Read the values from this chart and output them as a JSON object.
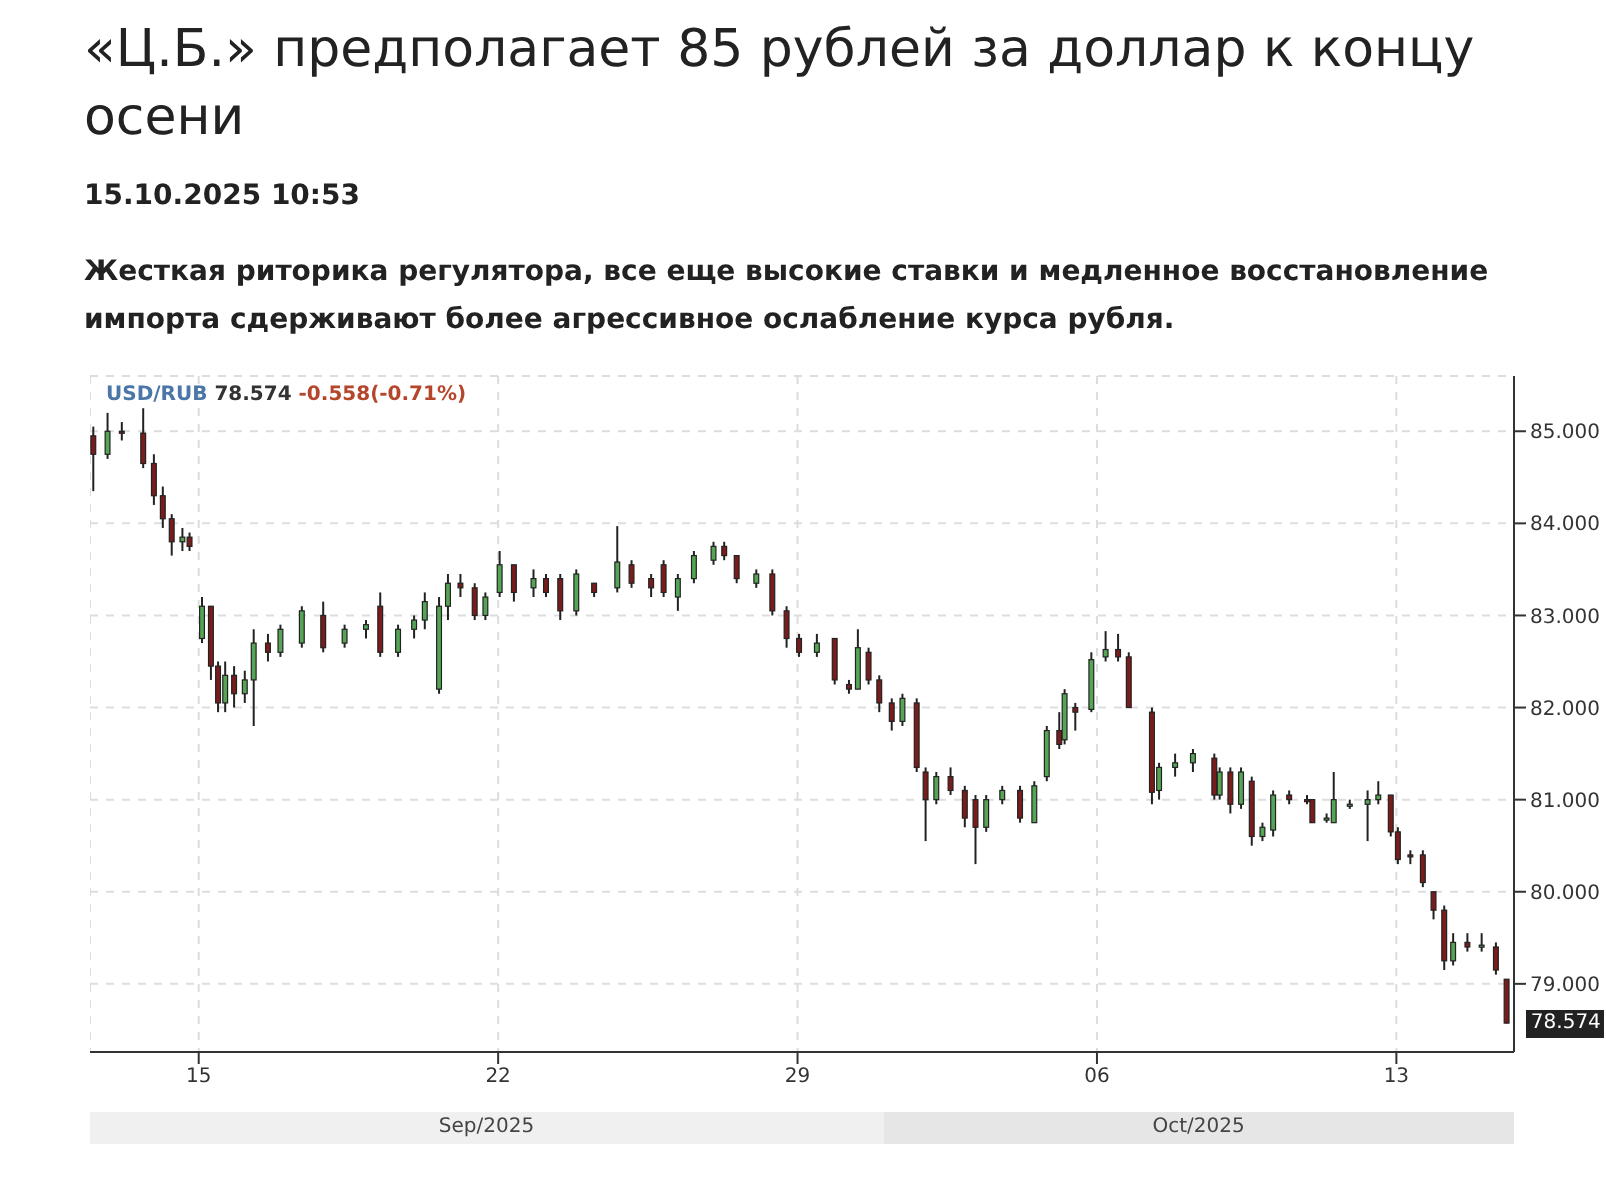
{
  "chart_data": {
    "type": "candlestick",
    "title": "«Ц.Б.» предполагает 85 рублей за доллар к концу осени",
    "subtitle": "15.10.2025 10:53",
    "annotations": [
      "Жесткая риторика регулятора, все еще высокие ставки и медленное восстановление импорта сдерживают более агрессивное ослабление курса рубля.",
      "78.574",
      "-0.558(-0.71%)",
      "Sep/2025",
      "Oct/2025",
      {
        "text": "78.574",
        "x": "2025-10-15T14:00",
        "y": 78.574
      }
    ],
    "series": [
      {
        "name": "USD/RUB",
        "color": "#222222",
        "colors": [
          "#7a1c1c",
          "#55a555",
          "#7a1c1c",
          "#7a1c1c",
          "#7a1c1c",
          "#7a1c1c",
          "#7a1c1c",
          "#55a555",
          "#7a1c1c",
          "#55a555",
          "#7a1c1c",
          "#7a1c1c",
          "#55a555",
          "#7a1c1c",
          "#55a555",
          "#55a555",
          "#7a1c1c",
          "#55a555",
          "#55a555",
          "#7a1c1c",
          "#55a555",
          "#55a555",
          "#7a1c1c",
          "#55a555",
          "#55a555",
          "#55a555",
          "#55a555",
          "#55a555",
          "#7a1c1c",
          "#7a1c1c",
          "#55a555",
          "#55a555",
          "#7a1c1c",
          "#55a555",
          "#7a1c1c",
          "#7a1c1c",
          "#55a555",
          "#7a1c1c",
          "#55a555",
          "#7a1c1c",
          "#7a1c1c",
          "#7a1c1c",
          "#55a555",
          "#55a555",
          "#55a555",
          "#7a1c1c",
          "#7a1c1c",
          "#55a555",
          "#7a1c1c",
          "#7a1c1c",
          "#7a1c1c",
          "#55a555",
          "#7a1c1c",
          "#7a1c1c",
          "#55a555",
          "#7a1c1c",
          "#7a1c1c",
          "#7a1c1c",
          "#55a555",
          "#7a1c1c",
          "#7a1c1c",
          "#55a555",
          "#7a1c1c",
          "#7a1c1c",
          "#7a1c1c",
          "#55a555",
          "#55a555",
          "#7a1c1c",
          "#55a555",
          "#55a555",
          "#7a1c1c",
          "#55a555",
          "#7a1c1c",
          "#55a555",
          "#55a555",
          "#7a1c1c",
          "#7a1c1c",
          "#7a1c1c",
          "#55a555",
          "#55a555",
          "#55a555",
          "#7a1c1c",
          "#55a555",
          "#7a1c1c",
          "#55a555",
          "#7a1c1c",
          "#55a555",
          "#55a555",
          "#7a1c1c",
          "#7a1c1c",
          "#7a1c1c",
          "#55a555",
          "#55a555",
          "#55a555",
          "#55a555",
          "#55a555",
          "#7a1c1c",
          "#7a1c1c",
          "#7a1c1c",
          "#7a1c1c",
          "#7a1c1c",
          "#7a1c1c",
          "#55a555",
          "#7a1c1c",
          "#55a555",
          "#7a1c1c",
          "#7a1c1c"
        ],
        "x": [
          "2025-09-12T13:00",
          "2025-09-12T21:00",
          "2025-09-13T05:00",
          "2025-09-13T17:00",
          "2025-09-13T23:00",
          "2025-09-14T04:00",
          "2025-09-14T09:00",
          "2025-09-14T15:00",
          "2025-09-14T19:00",
          "2025-09-15T02:00",
          "2025-09-15T07:00",
          "2025-09-15T11:00",
          "2025-09-15T15:00",
          "2025-09-15T20:00",
          "2025-09-16T02:00",
          "2025-09-16T07:00",
          "2025-09-16T15:00",
          "2025-09-16T22:00",
          "2025-09-17T10:00",
          "2025-09-17T22:00",
          "2025-09-18T10:00",
          "2025-09-18T22:00",
          "2025-09-19T06:00",
          "2025-09-19T16:00",
          "2025-09-20T01:00",
          "2025-09-20T07:00",
          "2025-09-20T15:00",
          "2025-09-20T20:00",
          "2025-09-21T03:00",
          "2025-09-21T11:00",
          "2025-09-21T17:00",
          "2025-09-22T01:00",
          "2025-09-22T09:00",
          "2025-09-22T20:00",
          "2025-09-23T03:00",
          "2025-09-23T11:00",
          "2025-09-23T20:00",
          "2025-09-24T06:00",
          "2025-09-24T19:00",
          "2025-09-25T03:00",
          "2025-09-25T14:00",
          "2025-09-25T21:00",
          "2025-09-26T05:00",
          "2025-09-26T14:00",
          "2025-09-27T01:00",
          "2025-09-27T07:00",
          "2025-09-27T14:00",
          "2025-09-28T01:00",
          "2025-09-28T10:00",
          "2025-09-28T18:00",
          "2025-09-29T01:00",
          "2025-09-29T11:00",
          "2025-09-29T21:00",
          "2025-09-30T05:00",
          "2025-09-30T10:00",
          "2025-09-30T16:00",
          "2025-09-30T22:00",
          "2025-10-01T05:00",
          "2025-10-01T11:00",
          "2025-10-01T19:00",
          "2025-10-02T00:00",
          "2025-10-02T06:00",
          "2025-10-02T14:00",
          "2025-10-02T22:00",
          "2025-10-03T04:00",
          "2025-10-03T10:00",
          "2025-10-03T19:00",
          "2025-10-04T05:00",
          "2025-10-04T13:00",
          "2025-10-04T20:00",
          "2025-10-05T03:00",
          "2025-10-05T06:00",
          "2025-10-05T12:00",
          "2025-10-05T21:00",
          "2025-10-06T05:00",
          "2025-10-06T12:00",
          "2025-10-06T18:00",
          "2025-10-07T07:00",
          "2025-10-07T11:00",
          "2025-10-07T20:00",
          "2025-10-08T06:00",
          "2025-10-08T18:00",
          "2025-10-08T21:00",
          "2025-10-09T03:00",
          "2025-10-09T09:00",
          "2025-10-09T15:00",
          "2025-10-09T21:00",
          "2025-10-10T03:00",
          "2025-10-10T12:00",
          "2025-10-10T22:00",
          "2025-10-11T01:00",
          "2025-10-11T09:00",
          "2025-10-11T13:00",
          "2025-10-11T22:00",
          "2025-10-12T08:00",
          "2025-10-12T14:00",
          "2025-10-12T21:00",
          "2025-10-13T01:00",
          "2025-10-13T08:00",
          "2025-10-13T15:00",
          "2025-10-13T21:00",
          "2025-10-14T03:00",
          "2025-10-14T08:00",
          "2025-10-14T16:00",
          "2025-10-15T00:00",
          "2025-10-15T08:00",
          "2025-10-15T14:00"
        ],
        "ohlc": [
          [
            84.95,
            85.05,
            84.35,
            84.75
          ],
          [
            84.75,
            85.2,
            84.7,
            85.0
          ],
          [
            85.0,
            85.1,
            84.9,
            84.98
          ],
          [
            84.98,
            85.25,
            84.6,
            84.65
          ],
          [
            84.65,
            84.75,
            84.2,
            84.3
          ],
          [
            84.3,
            84.4,
            83.95,
            84.05
          ],
          [
            84.05,
            84.1,
            83.65,
            83.8
          ],
          [
            83.8,
            83.95,
            83.7,
            83.85
          ],
          [
            83.85,
            83.9,
            83.7,
            83.75
          ],
          [
            82.75,
            83.2,
            82.7,
            83.1
          ],
          [
            83.1,
            83.1,
            82.3,
            82.45
          ],
          [
            82.45,
            82.5,
            81.95,
            82.05
          ],
          [
            82.05,
            82.5,
            81.95,
            82.35
          ],
          [
            82.35,
            82.45,
            82.0,
            82.15
          ],
          [
            82.15,
            82.4,
            82.05,
            82.3
          ],
          [
            82.3,
            82.85,
            81.8,
            82.7
          ],
          [
            82.7,
            82.8,
            82.5,
            82.6
          ],
          [
            82.6,
            82.9,
            82.55,
            82.85
          ],
          [
            82.7,
            83.1,
            82.65,
            83.05
          ],
          [
            83.0,
            83.15,
            82.6,
            82.65
          ],
          [
            82.7,
            82.9,
            82.65,
            82.85
          ],
          [
            82.85,
            82.95,
            82.75,
            82.9
          ],
          [
            83.1,
            83.25,
            82.55,
            82.6
          ],
          [
            82.6,
            82.9,
            82.55,
            82.85
          ],
          [
            82.85,
            83.0,
            82.75,
            82.95
          ],
          [
            82.95,
            83.25,
            82.85,
            83.15
          ],
          [
            82.2,
            83.2,
            82.15,
            83.1
          ],
          [
            83.1,
            83.45,
            82.95,
            83.35
          ],
          [
            83.35,
            83.45,
            83.2,
            83.3
          ],
          [
            83.3,
            83.35,
            82.95,
            83.0
          ],
          [
            83.0,
            83.25,
            82.95,
            83.2
          ],
          [
            83.25,
            83.7,
            83.2,
            83.55
          ],
          [
            83.55,
            83.55,
            83.15,
            83.25
          ],
          [
            83.3,
            83.5,
            83.2,
            83.4
          ],
          [
            83.4,
            83.45,
            83.2,
            83.25
          ],
          [
            83.4,
            83.45,
            82.95,
            83.05
          ],
          [
            83.05,
            83.5,
            83.0,
            83.45
          ],
          [
            83.35,
            83.35,
            83.2,
            83.25
          ],
          [
            83.3,
            83.97,
            83.25,
            83.58
          ],
          [
            83.55,
            83.6,
            83.3,
            83.35
          ],
          [
            83.4,
            83.45,
            83.2,
            83.3
          ],
          [
            83.55,
            83.6,
            83.2,
            83.25
          ],
          [
            83.2,
            83.45,
            83.05,
            83.4
          ],
          [
            83.4,
            83.7,
            83.35,
            83.65
          ],
          [
            83.6,
            83.8,
            83.55,
            83.75
          ],
          [
            83.75,
            83.8,
            83.6,
            83.65
          ],
          [
            83.65,
            83.65,
            83.35,
            83.4
          ],
          [
            83.35,
            83.5,
            83.3,
            83.45
          ],
          [
            83.45,
            83.5,
            83.0,
            83.05
          ],
          [
            83.05,
            83.1,
            82.65,
            82.75
          ],
          [
            82.75,
            82.8,
            82.55,
            82.6
          ],
          [
            82.6,
            82.8,
            82.55,
            82.7
          ],
          [
            82.75,
            82.75,
            82.25,
            82.3
          ],
          [
            82.25,
            82.3,
            82.15,
            82.2
          ],
          [
            82.2,
            82.85,
            82.2,
            82.65
          ],
          [
            82.6,
            82.65,
            82.25,
            82.3
          ],
          [
            82.3,
            82.35,
            81.95,
            82.05
          ],
          [
            82.05,
            82.1,
            81.75,
            81.85
          ],
          [
            81.85,
            82.15,
            81.8,
            82.1
          ],
          [
            82.05,
            82.1,
            81.3,
            81.35
          ],
          [
            81.3,
            81.35,
            80.55,
            81.0
          ],
          [
            81.0,
            81.3,
            80.95,
            81.25
          ],
          [
            81.25,
            81.35,
            81.05,
            81.1
          ],
          [
            81.1,
            81.15,
            80.7,
            80.8
          ],
          [
            81.0,
            81.05,
            80.3,
            80.7
          ],
          [
            80.7,
            81.05,
            80.65,
            81.0
          ],
          [
            81.0,
            81.15,
            80.95,
            81.1
          ],
          [
            81.1,
            81.15,
            80.75,
            80.8
          ],
          [
            80.75,
            81.2,
            80.75,
            81.15
          ],
          [
            81.25,
            81.8,
            81.2,
            81.75
          ],
          [
            81.75,
            81.95,
            81.55,
            81.6
          ],
          [
            81.65,
            82.2,
            81.6,
            82.15
          ],
          [
            82.0,
            82.05,
            81.75,
            81.95
          ],
          [
            81.98,
            82.6,
            81.95,
            82.52
          ],
          [
            82.55,
            82.83,
            82.5,
            82.63
          ],
          [
            82.63,
            82.8,
            82.5,
            82.55
          ],
          [
            82.55,
            82.6,
            82.0,
            82.0
          ],
          [
            81.95,
            82.0,
            80.95,
            81.08
          ],
          [
            81.1,
            81.4,
            81.0,
            81.35
          ],
          [
            81.35,
            81.5,
            81.25,
            81.4
          ],
          [
            81.4,
            81.55,
            81.3,
            81.5
          ],
          [
            81.45,
            81.5,
            81.0,
            81.05
          ],
          [
            81.05,
            81.35,
            81.0,
            81.3
          ],
          [
            81.3,
            81.35,
            80.85,
            80.95
          ],
          [
            80.95,
            81.35,
            80.9,
            81.3
          ],
          [
            81.2,
            81.25,
            80.5,
            80.6
          ],
          [
            80.6,
            80.75,
            80.55,
            80.7
          ],
          [
            80.67,
            81.1,
            80.6,
            81.05
          ],
          [
            81.05,
            81.1,
            80.95,
            81.0
          ],
          [
            81.0,
            81.05,
            80.95,
            80.98
          ],
          [
            81.0,
            81.0,
            80.75,
            80.75
          ],
          [
            80.8,
            80.85,
            80.75,
            80.8
          ],
          [
            80.75,
            81.3,
            80.75,
            81.0
          ],
          [
            80.95,
            81.0,
            80.9,
            80.95
          ],
          [
            80.95,
            81.1,
            80.55,
            81.0
          ],
          [
            81.0,
            81.2,
            80.95,
            81.05
          ],
          [
            81.05,
            81.05,
            80.6,
            80.65
          ],
          [
            80.65,
            80.7,
            80.3,
            80.35
          ],
          [
            80.4,
            80.45,
            80.3,
            80.38
          ],
          [
            80.4,
            80.45,
            80.05,
            80.1
          ],
          [
            80.0,
            80.0,
            79.7,
            79.8
          ],
          [
            79.8,
            79.85,
            79.15,
            79.25
          ],
          [
            79.25,
            79.55,
            79.2,
            79.45
          ],
          [
            79.45,
            79.55,
            79.35,
            79.4
          ],
          [
            79.4,
            79.55,
            79.35,
            79.42
          ],
          [
            79.4,
            79.45,
            79.1,
            79.15
          ],
          [
            79.05,
            79.05,
            78.57,
            78.574
          ]
        ]
      }
    ],
    "xlim": [
      "2025-09-12T11:00",
      "2025-10-15T18:00"
    ],
    "xticks": [
      {
        "value": "2025-09-15",
        "label": "15"
      },
      {
        "value": "2025-09-22",
        "label": "22"
      },
      {
        "value": "2025-09-29",
        "label": "29"
      },
      {
        "value": "2025-10-06",
        "label": "06"
      },
      {
        "value": "2025-10-13",
        "label": "13"
      }
    ],
    "ylim": [
      78.26,
      85.6
    ],
    "yticks": [
      {
        "value": 79,
        "label": "79.000"
      },
      {
        "value": 80,
        "label": "80.000"
      },
      {
        "value": 81,
        "label": "81.000"
      },
      {
        "value": 82,
        "label": "82.000"
      },
      {
        "value": 83,
        "label": "83.000"
      },
      {
        "value": 84,
        "label": "84.000"
      },
      {
        "value": 85,
        "label": "85.000"
      }
    ],
    "grid": true
  }
}
